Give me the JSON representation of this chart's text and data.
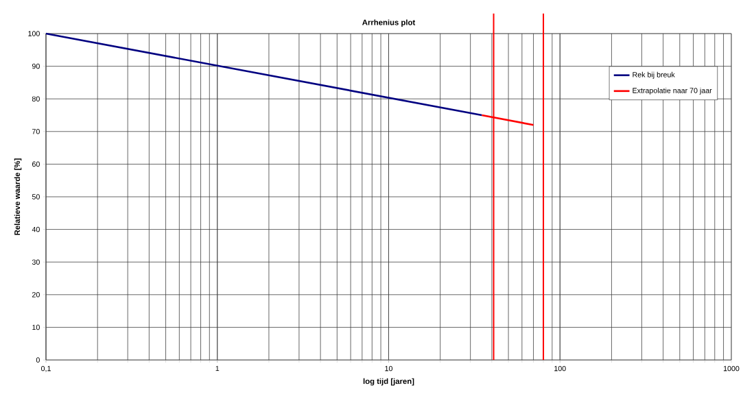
{
  "chart_data": {
    "type": "line",
    "title": "Arrhenius plot",
    "xlabel": "log tijd [jaren]",
    "ylabel": "Relatieve waarde [%]",
    "log": "x",
    "xlim": [
      0.1,
      1000
    ],
    "ylim": [
      0,
      100
    ],
    "xticks": [
      {
        "value": 0.1,
        "label": "0,1"
      },
      1,
      10,
      100,
      1000
    ],
    "yticks": [
      0,
      10,
      20,
      30,
      40,
      50,
      60,
      70,
      80,
      90,
      100
    ],
    "grid": true,
    "legend": "top right",
    "series": [
      {
        "name": "Rek bij breuk",
        "color": "#000080",
        "x": [
          0.1,
          35
        ],
        "values": [
          100,
          75
        ]
      },
      {
        "name": "Extrapolatie naar 70 jaar",
        "color": "#ff0000",
        "x": [
          35,
          70
        ],
        "values": [
          75,
          72
        ]
      }
    ],
    "ref_lines": [
      {
        "axis": "x",
        "value": 41,
        "color": "#ff0000"
      },
      {
        "axis": "x",
        "value": 80,
        "color": "#ff0000"
      }
    ]
  }
}
